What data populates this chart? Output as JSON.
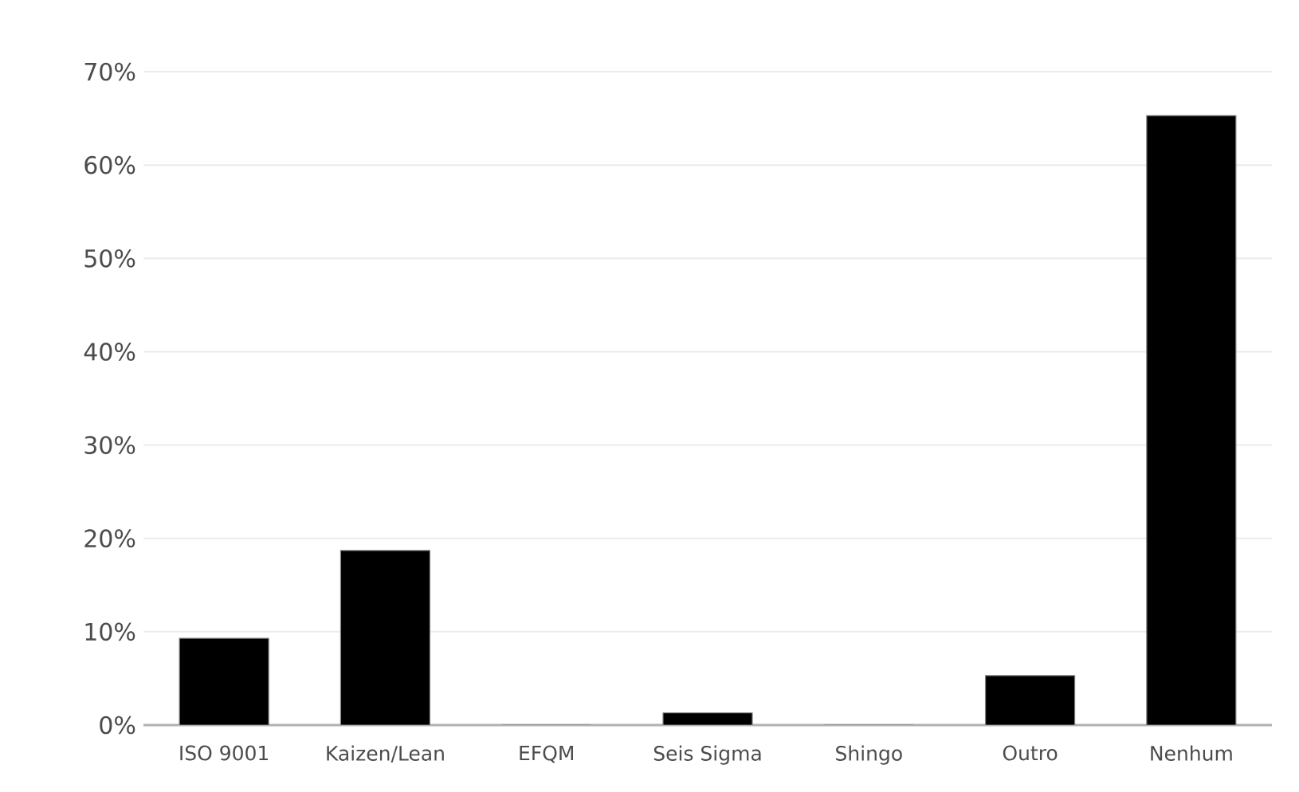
{
  "chart_data": {
    "type": "bar",
    "categories": [
      "ISO 9001",
      "Kaizen/Lean",
      "EFQM",
      "Seis Sigma",
      "Shingo",
      "Outro",
      "Nenhum"
    ],
    "values": [
      9.3,
      18.7,
      0,
      1.3,
      0,
      5.3,
      65.3
    ],
    "color": "#000000",
    "ylim": [
      0,
      70
    ],
    "yticks": [
      {
        "value": 0,
        "label": "0%"
      },
      {
        "value": 10,
        "label": "10%"
      },
      {
        "value": 20,
        "label": "20%"
      },
      {
        "value": 30,
        "label": "30%"
      },
      {
        "value": 40,
        "label": "40%"
      },
      {
        "value": 50,
        "label": "50%"
      },
      {
        "value": 60,
        "label": "60%"
      },
      {
        "value": 70,
        "label": "70%"
      }
    ],
    "grid": "y"
  }
}
